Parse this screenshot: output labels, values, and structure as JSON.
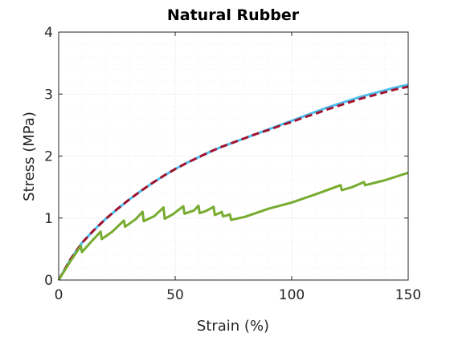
{
  "chart_data": {
    "type": "line",
    "title": "Natural Rubber",
    "xlabel": "Strain (%)",
    "ylabel": "Stress (MPa)",
    "xlim": [
      0,
      150
    ],
    "ylim": [
      0,
      4
    ],
    "xticks": [
      0,
      50,
      100,
      150
    ],
    "yticks": [
      0,
      1,
      2,
      3,
      4
    ],
    "grid": true,
    "legend": "none",
    "series": [
      {
        "color": "#4dbeee",
        "style": "solid",
        "x": [
          0,
          5,
          10,
          15,
          20,
          25,
          30,
          35,
          40,
          45,
          50,
          55,
          60,
          65,
          70,
          75,
          80,
          85,
          90,
          95,
          100,
          105,
          110,
          115,
          120,
          125,
          130,
          135,
          140,
          145,
          150
        ],
        "y": [
          0,
          0.33,
          0.6,
          0.8,
          0.98,
          1.14,
          1.29,
          1.43,
          1.56,
          1.68,
          1.79,
          1.89,
          1.98,
          2.07,
          2.15,
          2.22,
          2.29,
          2.36,
          2.43,
          2.5,
          2.57,
          2.64,
          2.71,
          2.78,
          2.84,
          2.9,
          2.96,
          3.01,
          3.06,
          3.11,
          3.15
        ]
      },
      {
        "color": "#a2142f",
        "style": "dashed",
        "x": [
          0,
          5,
          10,
          15,
          20,
          25,
          30,
          35,
          40,
          45,
          50,
          55,
          60,
          65,
          70,
          75,
          80,
          85,
          90,
          95,
          100,
          105,
          110,
          115,
          120,
          125,
          130,
          135,
          140,
          145,
          150
        ],
        "y": [
          0,
          0.33,
          0.6,
          0.8,
          0.98,
          1.14,
          1.29,
          1.43,
          1.56,
          1.68,
          1.79,
          1.89,
          1.98,
          2.07,
          2.15,
          2.22,
          2.29,
          2.36,
          2.42,
          2.49,
          2.55,
          2.62,
          2.68,
          2.75,
          2.81,
          2.87,
          2.93,
          2.98,
          3.03,
          3.08,
          3.12
        ]
      },
      {
        "color": "#77ac30",
        "style": "solid",
        "x": [
          0,
          5,
          9.5,
          10,
          14,
          18,
          18.5,
          23,
          28,
          28.5,
          33,
          36,
          36.5,
          41,
          45,
          45.5,
          49,
          53.5,
          54,
          58,
          60,
          60.5,
          63,
          66.5,
          67,
          69,
          70,
          70.5,
          72,
          73.5,
          74,
          80,
          90,
          100,
          110,
          121,
          121.5,
          126,
          131,
          131.5,
          140,
          150
        ],
        "y": [
          0,
          0.3,
          0.55,
          0.45,
          0.62,
          0.78,
          0.66,
          0.78,
          0.96,
          0.86,
          0.98,
          1.1,
          0.95,
          1.03,
          1.17,
          0.99,
          1.06,
          1.19,
          1.07,
          1.12,
          1.2,
          1.08,
          1.11,
          1.18,
          1.05,
          1.08,
          1.1,
          1.03,
          1.04,
          1.06,
          0.97,
          1.02,
          1.15,
          1.25,
          1.38,
          1.53,
          1.45,
          1.5,
          1.58,
          1.53,
          1.61,
          1.73
        ]
      }
    ]
  }
}
